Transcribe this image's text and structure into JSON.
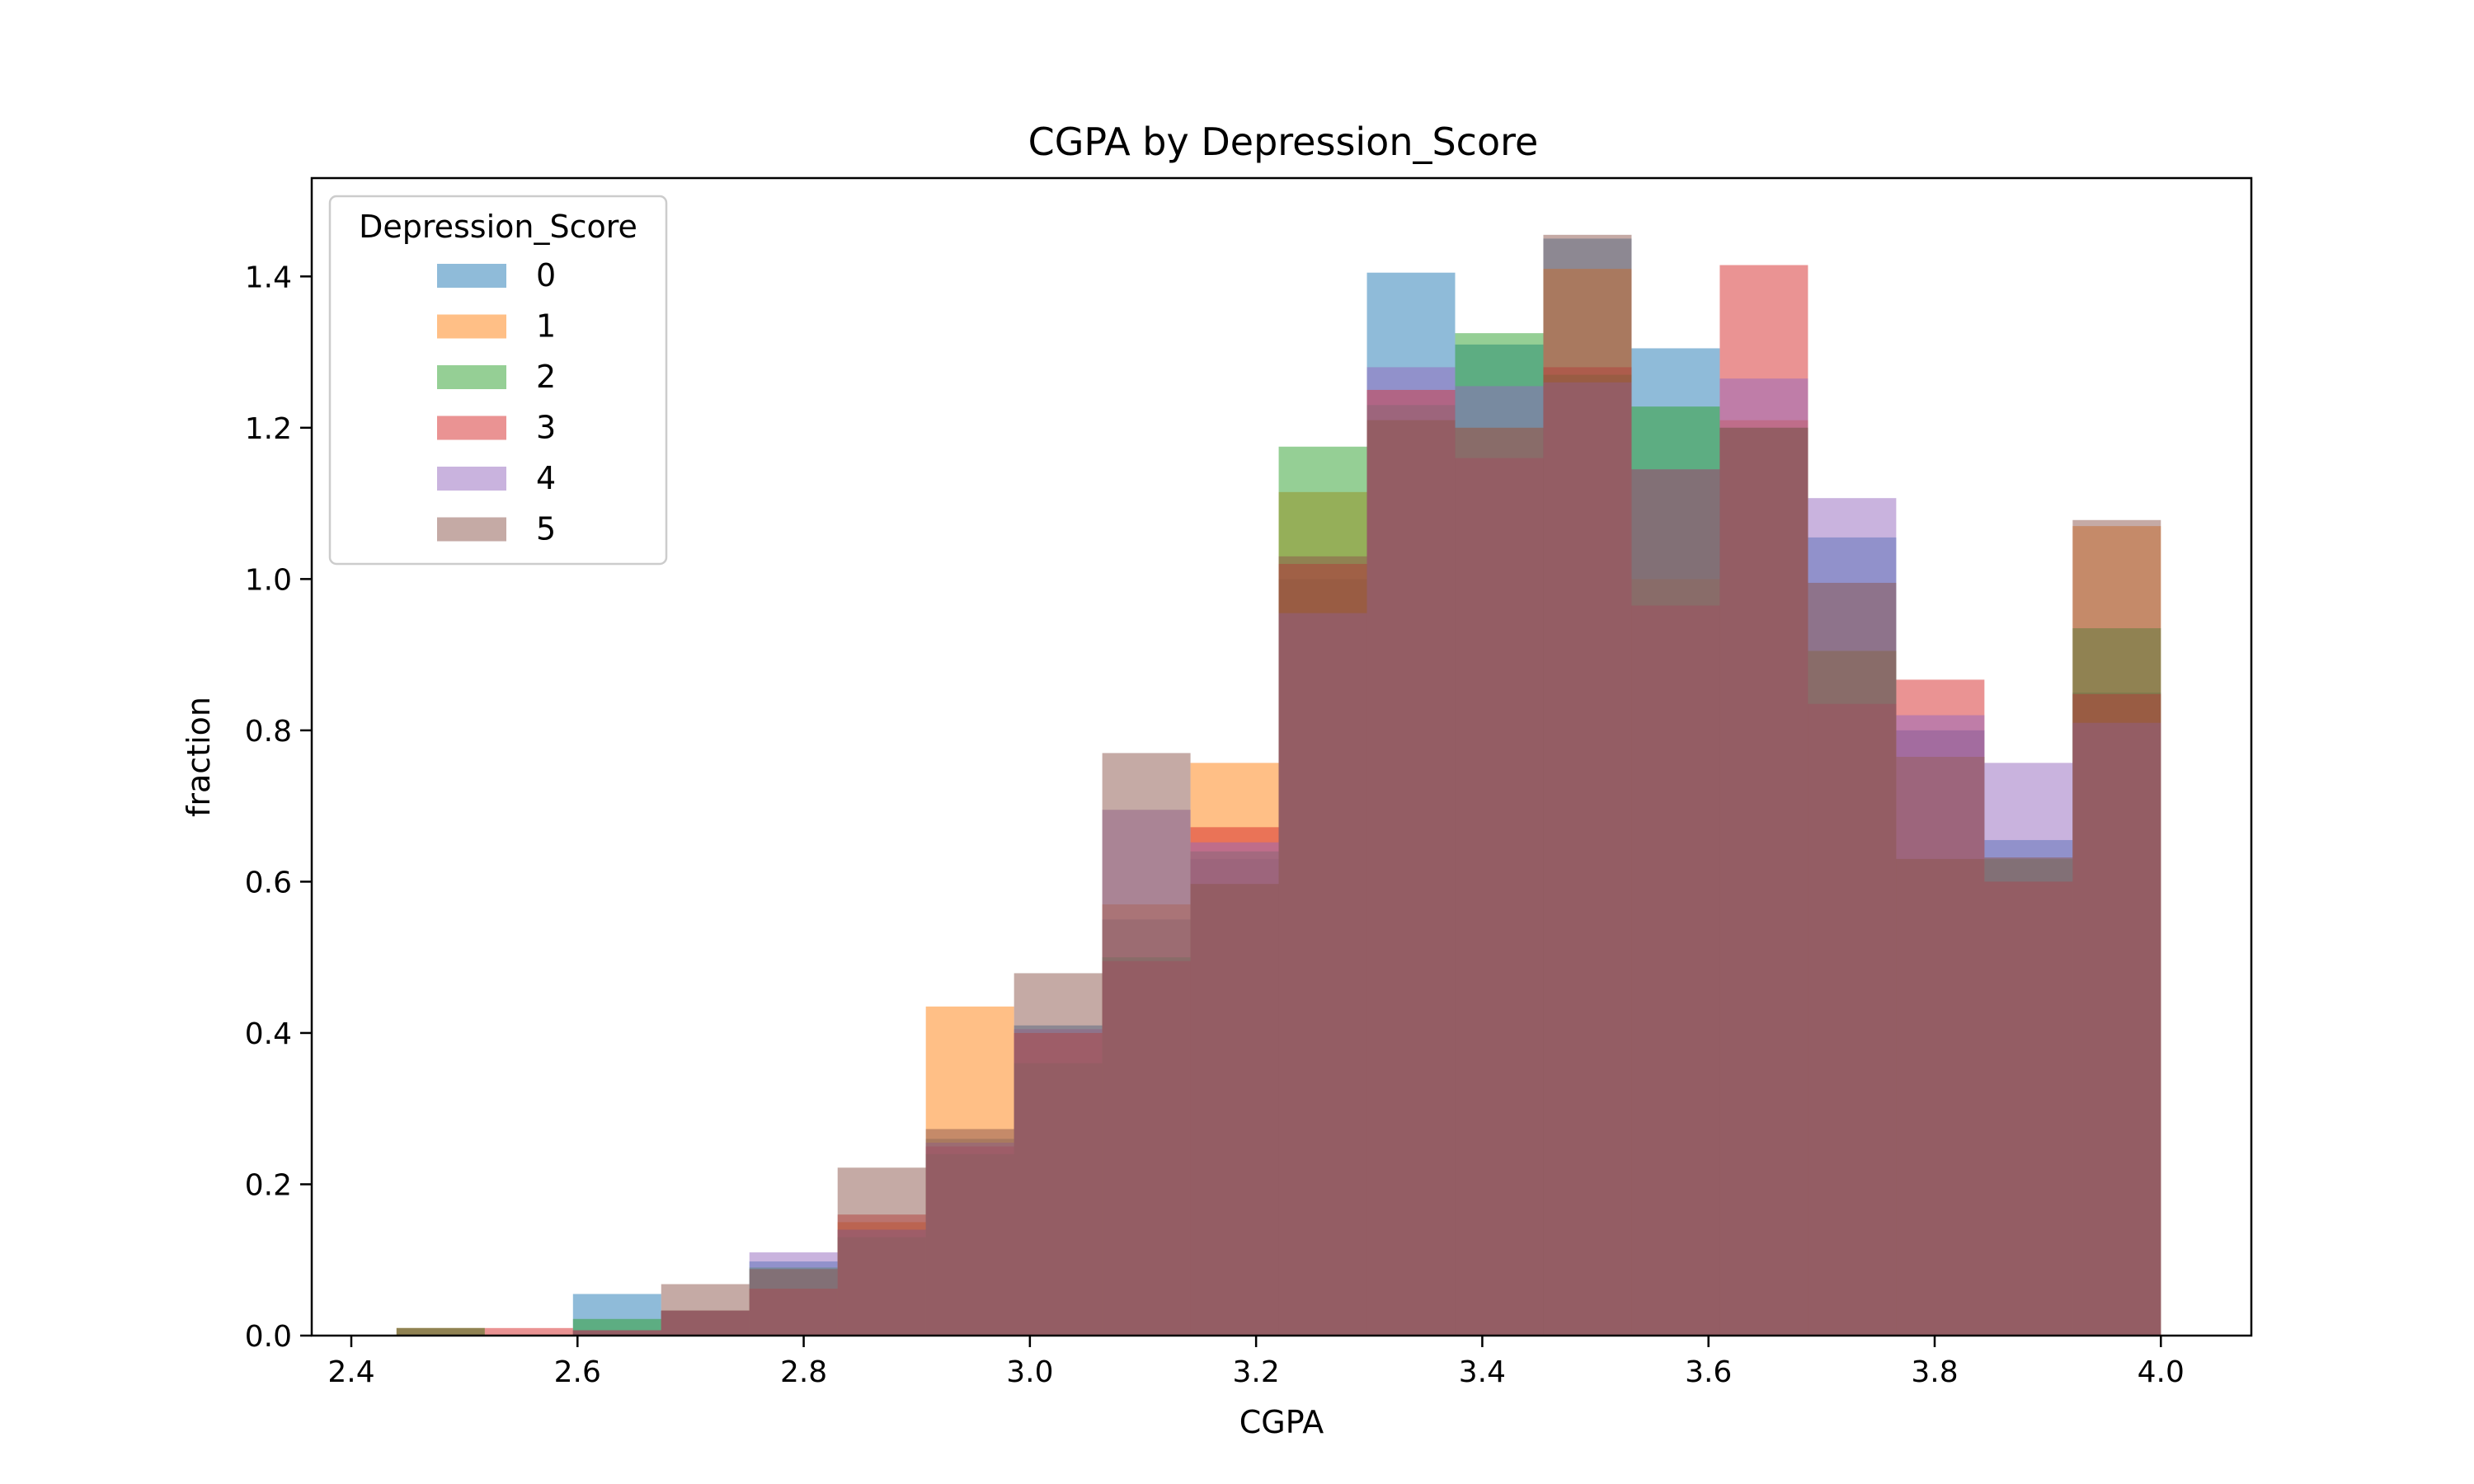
{
  "chart_data": {
    "type": "bar",
    "title": "CGPA by Depression_Score",
    "xlabel": "CGPA",
    "ylabel": "fraction",
    "xlim": [
      2.365,
      4.08
    ],
    "ylim": [
      0,
      1.53
    ],
    "xticks": [
      "2.4",
      "2.6",
      "2.8",
      "3.0",
      "3.2",
      "3.4",
      "3.6",
      "3.8",
      "4.0"
    ],
    "yticks": [
      "0.0",
      "0.2",
      "0.4",
      "0.6",
      "0.8",
      "1.0",
      "1.2",
      "1.4"
    ],
    "bin_edges": [
      2.44,
      2.518,
      2.596,
      2.674,
      2.752,
      2.83,
      2.908,
      2.986,
      3.064,
      3.142,
      3.22,
      3.298,
      3.376,
      3.454,
      3.532,
      3.61,
      3.688,
      3.766,
      3.844,
      3.922,
      4.0
    ],
    "grid": false,
    "legend": {
      "title": "Depression_Score",
      "placement": "top-left"
    },
    "series": [
      {
        "name": "0",
        "color": "#1f77b4",
        "values": [
          0.0,
          0.0,
          0.055,
          0.033,
          0.098,
          0.14,
          0.26,
          0.41,
          0.55,
          0.63,
          1.0,
          1.405,
          1.31,
          1.45,
          1.305,
          1.2,
          1.055,
          0.8,
          0.655,
          0.85
        ]
      },
      {
        "name": "1",
        "color": "#ff7f0e",
        "values": [
          0.01,
          0.0,
          0.007,
          0.033,
          0.062,
          0.15,
          0.435,
          0.4,
          0.57,
          0.757,
          1.115,
          1.25,
          1.2,
          1.41,
          1.0,
          1.21,
          0.905,
          0.765,
          0.6,
          1.07
        ]
      },
      {
        "name": "2",
        "color": "#2ca02c",
        "values": [
          0.01,
          0.0,
          0.022,
          0.033,
          0.09,
          0.13,
          0.24,
          0.36,
          0.5,
          0.64,
          1.175,
          1.23,
          1.325,
          1.27,
          1.228,
          1.2,
          0.905,
          0.765,
          0.63,
          0.935
        ]
      },
      {
        "name": "3",
        "color": "#d62728",
        "values": [
          0.0,
          0.01,
          0.007,
          0.033,
          0.062,
          0.16,
          0.25,
          0.4,
          0.495,
          0.672,
          1.02,
          1.25,
          1.16,
          1.28,
          0.965,
          1.415,
          0.835,
          0.867,
          0.6,
          0.848
        ]
      },
      {
        "name": "4",
        "color": "#9467bd",
        "values": [
          0.0,
          0.0,
          0.007,
          0.033,
          0.11,
          0.14,
          0.255,
          0.405,
          0.695,
          0.652,
          0.955,
          1.28,
          1.255,
          1.26,
          1.145,
          1.265,
          1.107,
          0.82,
          0.757,
          0.81
        ]
      },
      {
        "name": "5",
        "color": "#8c564b",
        "values": [
          0.01,
          0.0,
          0.007,
          0.068,
          0.088,
          0.222,
          0.273,
          0.479,
          0.77,
          0.597,
          1.03,
          1.21,
          1.2,
          1.455,
          1.145,
          1.2,
          0.995,
          0.63,
          0.632,
          1.078
        ]
      }
    ]
  }
}
